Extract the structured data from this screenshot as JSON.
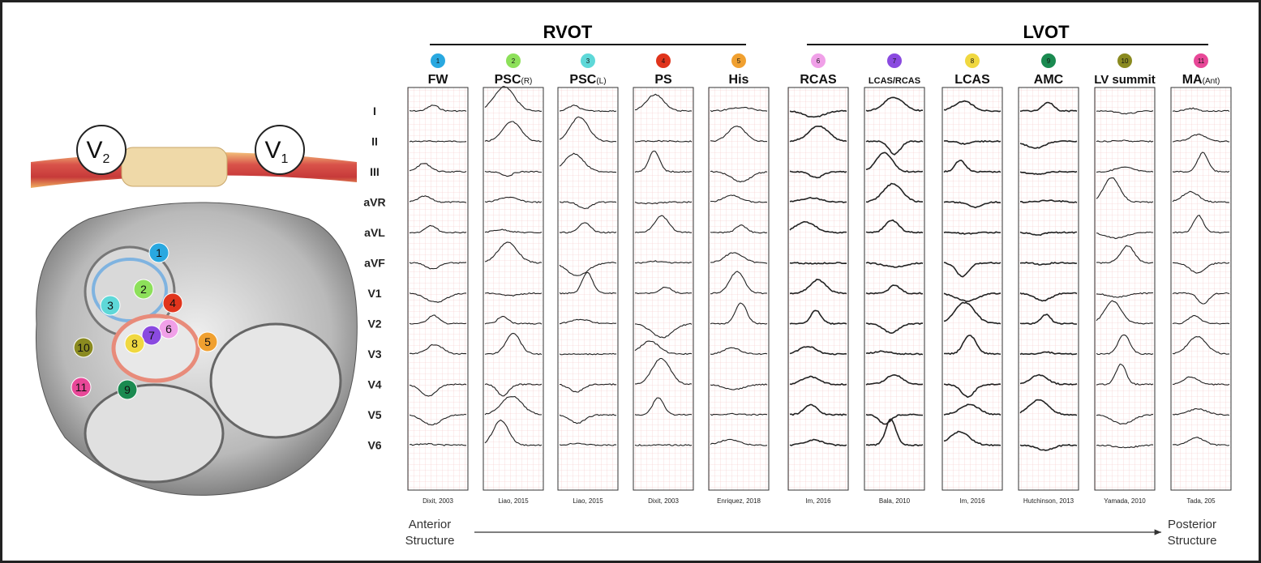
{
  "groups": [
    {
      "label": "RVOT"
    },
    {
      "label": "LVOT"
    }
  ],
  "sites": [
    {
      "number": "1",
      "name": "FW",
      "color": "#29a8e0",
      "citation": "Dixit, 2003"
    },
    {
      "number": "2",
      "name": "PSC",
      "suffix": "(R)",
      "color": "#8de05a",
      "citation": "Liao, 2015"
    },
    {
      "number": "3",
      "name": "PSC",
      "suffix": "(L)",
      "color": "#5ed8d8",
      "citation": "Liao, 2015"
    },
    {
      "number": "4",
      "name": "PS",
      "color": "#e0341c",
      "citation": "Dixit, 2003"
    },
    {
      "number": "5",
      "name": "His",
      "color": "#f0a030",
      "citation": "Enriquez, 2018"
    },
    {
      "number": "6",
      "name": "RCAS",
      "color": "#f0a0e8",
      "citation": "Im, 2016"
    },
    {
      "number": "7",
      "name": "LCAS/RCAS",
      "color": "#8a4ae0",
      "citation": "Bala, 2010"
    },
    {
      "number": "8",
      "name": "LCAS",
      "color": "#f0d840",
      "citation": "Im, 2016"
    },
    {
      "number": "9",
      "name": "AMC",
      "color": "#1a8a50",
      "citation": "Hutchinson, 2013"
    },
    {
      "number": "10",
      "name": "LV summit",
      "color": "#8a8a20",
      "citation": "Yamada, 2010"
    },
    {
      "number": "11",
      "name": "MA",
      "suffix": "(Ant)",
      "color": "#e84898",
      "citation": "Tada, 205"
    }
  ],
  "leads": [
    "I",
    "II",
    "III",
    "aVR",
    "aVL",
    "aVF",
    "V1",
    "V2",
    "V3",
    "V4",
    "V5",
    "V6"
  ],
  "electrodes": [
    {
      "letter": "V",
      "sub": "2"
    },
    {
      "letter": "V",
      "sub": "1"
    }
  ],
  "axis": {
    "start": [
      "Anterior",
      "Structure"
    ],
    "end": [
      "Posterior",
      "Structure"
    ]
  }
}
